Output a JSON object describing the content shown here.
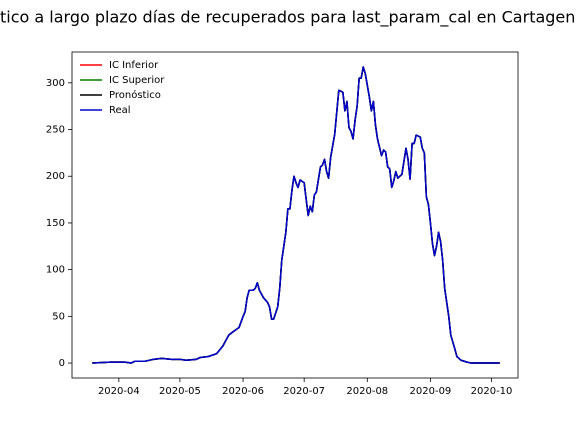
{
  "chart_data": {
    "type": "line",
    "title": "tico a largo plazo días de recuperados para last_param_cal en Cartagena de",
    "x": [
      "2020-03-19",
      "2020-03-28",
      "2020-04-04",
      "2020-04-07",
      "2020-04-09",
      "2020-04-14",
      "2020-04-18",
      "2020-04-22",
      "2020-04-27",
      "2020-05-01",
      "2020-05-04",
      "2020-05-09",
      "2020-05-11",
      "2020-05-15",
      "2020-05-19",
      "2020-05-22",
      "2020-05-25",
      "2020-05-28",
      "2020-05-30",
      "2020-06-01",
      "2020-06-02",
      "2020-06-03",
      "2020-06-04",
      "2020-06-06",
      "2020-06-07",
      "2020-06-08",
      "2020-06-09",
      "2020-06-11",
      "2020-06-13",
      "2020-06-14",
      "2020-06-15",
      "2020-06-16",
      "2020-06-18",
      "2020-06-19",
      "2020-06-20",
      "2020-06-22",
      "2020-06-23",
      "2020-06-24",
      "2020-06-25",
      "2020-06-26",
      "2020-06-27",
      "2020-06-28",
      "2020-06-29",
      "2020-07-01",
      "2020-07-02",
      "2020-07-03",
      "2020-07-04",
      "2020-07-05",
      "2020-07-06",
      "2020-07-07",
      "2020-07-09",
      "2020-07-10",
      "2020-07-11",
      "2020-07-12",
      "2020-07-13",
      "2020-07-14",
      "2020-07-16",
      "2020-07-18",
      "2020-07-20",
      "2020-07-21",
      "2020-07-22",
      "2020-07-23",
      "2020-07-24",
      "2020-07-25",
      "2020-07-26",
      "2020-07-27",
      "2020-07-28",
      "2020-07-29",
      "2020-07-30",
      "2020-07-31",
      "2020-08-02",
      "2020-08-03",
      "2020-08-04",
      "2020-08-05",
      "2020-08-06",
      "2020-08-08",
      "2020-08-09",
      "2020-08-10",
      "2020-08-11",
      "2020-08-12",
      "2020-08-13",
      "2020-08-14",
      "2020-08-15",
      "2020-08-16",
      "2020-08-17",
      "2020-08-18",
      "2020-08-20",
      "2020-08-21",
      "2020-08-22",
      "2020-08-23",
      "2020-08-24",
      "2020-08-25",
      "2020-08-27",
      "2020-08-28",
      "2020-08-29",
      "2020-08-30",
      "2020-08-31",
      "2020-09-01",
      "2020-09-02",
      "2020-09-03",
      "2020-09-04",
      "2020-09-05",
      "2020-09-06",
      "2020-09-07",
      "2020-09-08",
      "2020-09-10",
      "2020-09-11",
      "2020-09-13",
      "2020-09-14",
      "2020-09-16",
      "2020-09-19",
      "2020-09-21",
      "2020-10-05"
    ],
    "series": [
      {
        "name": "IC Inferior",
        "color": "#ff0000",
        "values": [
          0,
          1,
          1,
          0,
          2,
          2,
          4,
          5,
          4,
          4,
          3,
          4,
          6,
          7,
          10,
          18,
          30,
          35,
          38,
          50,
          55,
          70,
          78,
          78,
          80,
          86,
          78,
          70,
          65,
          60,
          47,
          47,
          60,
          80,
          110,
          140,
          165,
          165,
          185,
          200,
          193,
          188,
          196,
          193,
          175,
          158,
          168,
          162,
          180,
          183,
          210,
          212,
          218,
          205,
          198,
          220,
          245,
          292,
          290,
          270,
          280,
          252,
          248,
          240,
          260,
          275,
          305,
          305,
          317,
          310,
          285,
          270,
          280,
          255,
          240,
          222,
          228,
          226,
          210,
          208,
          188,
          195,
          205,
          198,
          200,
          202,
          230,
          218,
          197,
          235,
          235,
          244,
          242,
          230,
          225,
          178,
          170,
          150,
          128,
          115,
          125,
          140,
          130,
          110,
          80,
          50,
          30,
          15,
          7,
          3,
          1,
          0,
          0
        ]
      },
      {
        "name": "IC Superior",
        "color": "#008000",
        "values": [
          0,
          1,
          1,
          0,
          2,
          2,
          4,
          5,
          4,
          4,
          3,
          4,
          6,
          7,
          10,
          18,
          30,
          35,
          38,
          50,
          55,
          70,
          78,
          78,
          80,
          86,
          78,
          70,
          65,
          60,
          47,
          47,
          60,
          80,
          110,
          140,
          165,
          165,
          185,
          200,
          193,
          188,
          196,
          193,
          175,
          158,
          168,
          162,
          180,
          183,
          210,
          212,
          218,
          205,
          198,
          220,
          245,
          292,
          290,
          270,
          280,
          252,
          248,
          240,
          260,
          275,
          305,
          305,
          317,
          310,
          285,
          270,
          280,
          255,
          240,
          222,
          228,
          226,
          210,
          208,
          188,
          195,
          205,
          198,
          200,
          202,
          230,
          218,
          197,
          235,
          235,
          244,
          242,
          230,
          225,
          178,
          170,
          150,
          128,
          115,
          125,
          140,
          130,
          110,
          80,
          50,
          30,
          15,
          7,
          3,
          1,
          0,
          0
        ]
      },
      {
        "name": "Pronóstico",
        "color": "#000000",
        "values": [
          0,
          1,
          1,
          0,
          2,
          2,
          4,
          5,
          4,
          4,
          3,
          4,
          6,
          7,
          10,
          18,
          30,
          35,
          38,
          50,
          55,
          70,
          78,
          78,
          80,
          86,
          78,
          70,
          65,
          60,
          47,
          47,
          60,
          80,
          110,
          140,
          165,
          165,
          185,
          200,
          193,
          188,
          196,
          193,
          175,
          158,
          168,
          162,
          180,
          183,
          210,
          212,
          218,
          205,
          198,
          220,
          245,
          292,
          290,
          270,
          280,
          252,
          248,
          240,
          260,
          275,
          305,
          305,
          317,
          310,
          285,
          270,
          280,
          255,
          240,
          222,
          228,
          226,
          210,
          208,
          188,
          195,
          205,
          198,
          200,
          202,
          230,
          218,
          197,
          235,
          235,
          244,
          242,
          230,
          225,
          178,
          170,
          150,
          128,
          115,
          125,
          140,
          130,
          110,
          80,
          50,
          30,
          15,
          7,
          3,
          1,
          0,
          0
        ]
      },
      {
        "name": "Real",
        "color": "#0000cd",
        "values": [
          0,
          1,
          1,
          0,
          2,
          2,
          4,
          5,
          4,
          4,
          3,
          4,
          6,
          7,
          10,
          18,
          30,
          35,
          38,
          50,
          55,
          70,
          78,
          78,
          80,
          86,
          78,
          70,
          65,
          60,
          47,
          47,
          60,
          80,
          110,
          140,
          165,
          165,
          185,
          200,
          193,
          188,
          196,
          193,
          175,
          158,
          168,
          162,
          180,
          183,
          210,
          212,
          218,
          205,
          198,
          220,
          245,
          292,
          290,
          270,
          280,
          252,
          248,
          240,
          260,
          275,
          305,
          305,
          317,
          310,
          285,
          270,
          280,
          255,
          240,
          222,
          228,
          226,
          210,
          208,
          188,
          195,
          205,
          198,
          200,
          202,
          230,
          218,
          197,
          235,
          235,
          244,
          242,
          230,
          225,
          178,
          170,
          150,
          128,
          115,
          125,
          140,
          130,
          110,
          80,
          50,
          30,
          15,
          7,
          3,
          1,
          0,
          0
        ]
      }
    ],
    "xlim": [
      "2020-03-09",
      "2020-10-14"
    ],
    "xticks": [
      {
        "value": "2020-04-01",
        "label": "2020-04"
      },
      {
        "value": "2020-05-01",
        "label": "2020-05"
      },
      {
        "value": "2020-06-01",
        "label": "2020-06"
      },
      {
        "value": "2020-07-01",
        "label": "2020-07"
      },
      {
        "value": "2020-08-01",
        "label": "2020-08"
      },
      {
        "value": "2020-09-01",
        "label": "2020-09"
      },
      {
        "value": "2020-10-01",
        "label": "2020-10"
      }
    ],
    "ylim": [
      -16,
      333
    ],
    "yticks": [
      0,
      50,
      100,
      150,
      200,
      250,
      300
    ],
    "legend": "upper-left",
    "grid": false
  }
}
